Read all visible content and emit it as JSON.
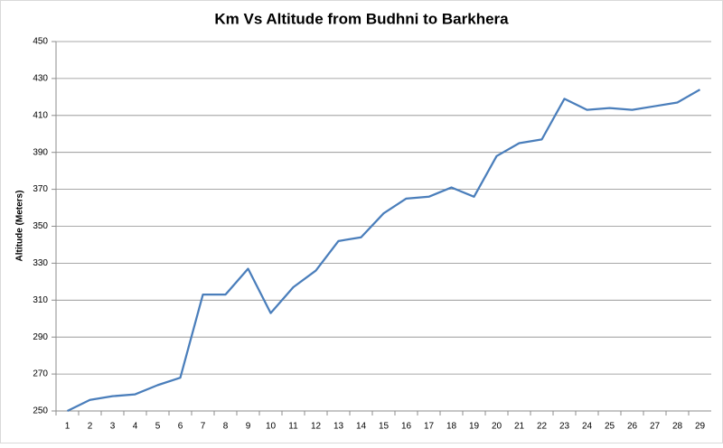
{
  "chart_data": {
    "type": "line",
    "title": "Km Vs Altitude from Budhni to Barkhera",
    "ylabel": "Altitude (Meters)",
    "categories": [
      "1",
      "2",
      "3",
      "4",
      "5",
      "6",
      "7",
      "8",
      "9",
      "10",
      "11",
      "12",
      "13",
      "14",
      "15",
      "16",
      "17",
      "18",
      "19",
      "20",
      "21",
      "22",
      "23",
      "24",
      "25",
      "26",
      "27",
      "28",
      "29"
    ],
    "series": [
      {
        "name": "Altitude",
        "color": "#4a7ebb",
        "values": [
          250,
          256,
          258,
          259,
          264,
          268,
          313,
          313,
          327,
          303,
          317,
          326,
          342,
          344,
          357,
          365,
          366,
          371,
          366,
          388,
          395,
          397,
          419,
          413,
          414,
          413,
          415,
          417,
          424
        ]
      }
    ],
    "ylim": [
      250,
      450
    ],
    "yticks": [
      250,
      270,
      290,
      310,
      330,
      350,
      370,
      390,
      410,
      430,
      450
    ],
    "grid": true
  }
}
